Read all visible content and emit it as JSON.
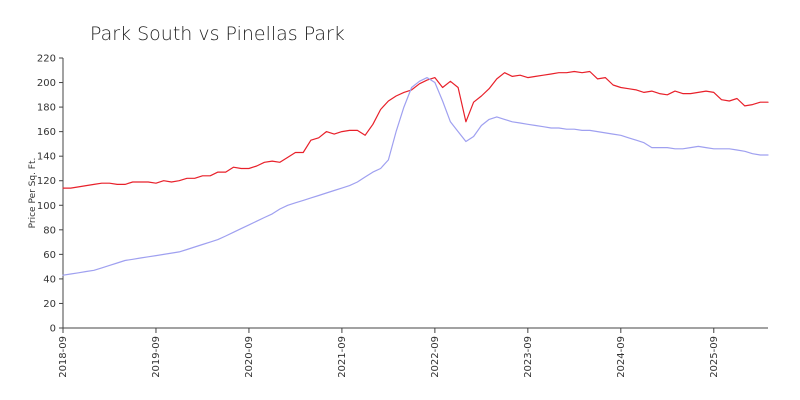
{
  "chart_data": {
    "type": "line",
    "title": "Park South vs Pinellas Park",
    "xlabel": "",
    "ylabel": "Price Per Sq. Ft.",
    "ylim": [
      0,
      220
    ],
    "yticks": [
      0,
      20,
      40,
      60,
      80,
      100,
      120,
      140,
      160,
      180,
      200,
      220
    ],
    "xlim": [
      "2018-09",
      "2026-04"
    ],
    "xticks": [
      "2018-09",
      "2019-09",
      "2020-09",
      "2021-09",
      "2022-09",
      "2023-09",
      "2024-09",
      "2025-09"
    ],
    "grid": false,
    "legend": "none",
    "series": [
      {
        "color": "#e8202a",
        "x": [
          "2018-09",
          "2018-10",
          "2018-11",
          "2018-12",
          "2019-01",
          "2019-02",
          "2019-03",
          "2019-04",
          "2019-05",
          "2019-06",
          "2019-07",
          "2019-08",
          "2019-09",
          "2019-10",
          "2019-11",
          "2019-12",
          "2020-01",
          "2020-02",
          "2020-03",
          "2020-04",
          "2020-05",
          "2020-06",
          "2020-07",
          "2020-08",
          "2020-09",
          "2020-10",
          "2020-11",
          "2020-12",
          "2021-01",
          "2021-02",
          "2021-03",
          "2021-04",
          "2021-05",
          "2021-06",
          "2021-07",
          "2021-08",
          "2021-09",
          "2021-10",
          "2021-11",
          "2021-12",
          "2022-01",
          "2022-02",
          "2022-03",
          "2022-04",
          "2022-05",
          "2022-06",
          "2022-07",
          "2022-08",
          "2022-09",
          "2022-10",
          "2022-11",
          "2022-12",
          "2023-01",
          "2023-02",
          "2023-03",
          "2023-04",
          "2023-05",
          "2023-06",
          "2023-07",
          "2023-08",
          "2023-09",
          "2023-10",
          "2023-11",
          "2023-12",
          "2024-01",
          "2024-02",
          "2024-03",
          "2024-04",
          "2024-05",
          "2024-06",
          "2024-07",
          "2024-08",
          "2024-09",
          "2024-10",
          "2024-11",
          "2024-12",
          "2025-01",
          "2025-02",
          "2025-03",
          "2025-04",
          "2025-05",
          "2025-06",
          "2025-07",
          "2025-08",
          "2025-09",
          "2025-10",
          "2025-11",
          "2025-12",
          "2026-01",
          "2026-02",
          "2026-03",
          "2026-04"
        ],
        "values": [
          114,
          114,
          115,
          116,
          117,
          118,
          118,
          117,
          117,
          119,
          119,
          119,
          118,
          120,
          119,
          120,
          122,
          122,
          124,
          124,
          127,
          127,
          131,
          130,
          130,
          132,
          135,
          136,
          135,
          139,
          143,
          143,
          153,
          155,
          160,
          158,
          160,
          161,
          161,
          157,
          166,
          178,
          185,
          189,
          192,
          194,
          199,
          202,
          204,
          196,
          201,
          196,
          168,
          184,
          189,
          195,
          203,
          208,
          205,
          206,
          204,
          205,
          206,
          207,
          208,
          208,
          209,
          208,
          209,
          203,
          204,
          198,
          196,
          195,
          194,
          192,
          193,
          191,
          190,
          193,
          191,
          191,
          192,
          193,
          192,
          186,
          185,
          187,
          181,
          182,
          184,
          184
        ]
      },
      {
        "color": "#9fa0f0",
        "x": [
          "2018-09",
          "2018-10",
          "2018-11",
          "2018-12",
          "2019-01",
          "2019-02",
          "2019-03",
          "2019-04",
          "2019-05",
          "2019-06",
          "2019-07",
          "2019-08",
          "2019-09",
          "2019-10",
          "2019-11",
          "2019-12",
          "2020-01",
          "2020-02",
          "2020-03",
          "2020-04",
          "2020-05",
          "2020-06",
          "2020-07",
          "2020-08",
          "2020-09",
          "2020-10",
          "2020-11",
          "2020-12",
          "2021-01",
          "2021-02",
          "2021-03",
          "2021-04",
          "2021-05",
          "2021-06",
          "2021-07",
          "2021-08",
          "2021-09",
          "2021-10",
          "2021-11",
          "2021-12",
          "2022-01",
          "2022-02",
          "2022-03",
          "2022-04",
          "2022-05",
          "2022-06",
          "2022-07",
          "2022-08",
          "2022-09",
          "2022-10",
          "2022-11",
          "2022-12",
          "2023-01",
          "2023-02",
          "2023-03",
          "2023-04",
          "2023-05",
          "2023-06",
          "2023-07",
          "2023-08",
          "2023-09",
          "2023-10",
          "2023-11",
          "2023-12",
          "2024-01",
          "2024-02",
          "2024-03",
          "2024-04",
          "2024-05",
          "2024-06",
          "2024-07",
          "2024-08",
          "2024-09",
          "2024-10",
          "2024-11",
          "2024-12",
          "2025-01",
          "2025-02",
          "2025-03",
          "2025-04",
          "2025-05",
          "2025-06",
          "2025-07",
          "2025-08",
          "2025-09",
          "2025-10",
          "2025-11",
          "2025-12",
          "2026-01",
          "2026-02",
          "2026-03",
          "2026-04"
        ],
        "values": [
          43,
          44,
          45,
          46,
          47,
          49,
          51,
          53,
          55,
          56,
          57,
          58,
          59,
          60,
          61,
          62,
          64,
          66,
          68,
          70,
          72,
          75,
          78,
          81,
          84,
          87,
          90,
          93,
          97,
          100,
          102,
          104,
          106,
          108,
          110,
          112,
          114,
          116,
          119,
          123,
          127,
          130,
          137,
          160,
          180,
          196,
          201,
          204,
          200,
          185,
          168,
          160,
          152,
          156,
          165,
          170,
          172,
          170,
          168,
          167,
          166,
          165,
          164,
          163,
          163,
          162,
          162,
          161,
          161,
          160,
          159,
          158,
          157,
          155,
          153,
          151,
          147,
          147,
          147,
          146,
          146,
          147,
          148,
          147,
          146,
          146,
          146,
          145,
          144,
          142,
          141,
          141
        ]
      }
    ]
  }
}
